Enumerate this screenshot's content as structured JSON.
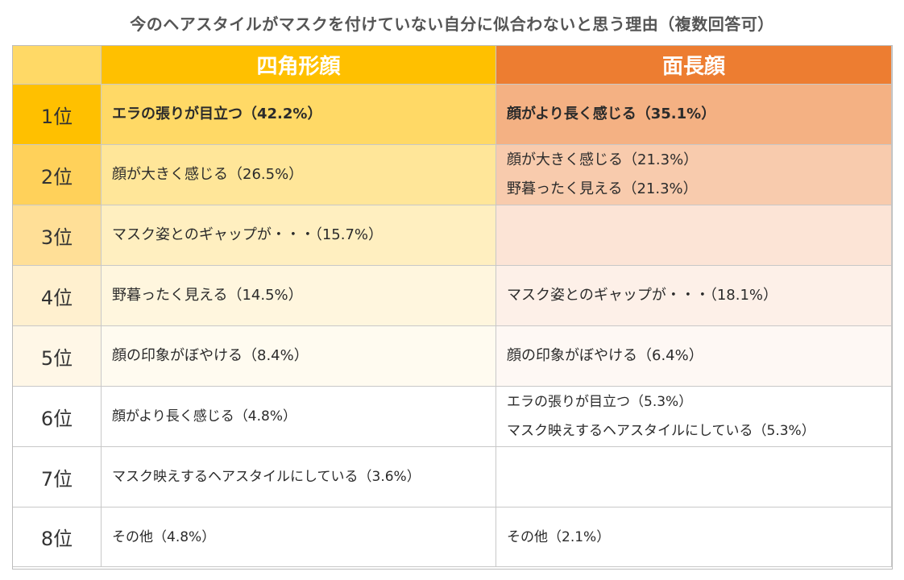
{
  "chart_data": {
    "type": "table",
    "title": "今のヘアスタイルがマスクを付けていない自分に似合わないと思う理由（複数回答可）",
    "columns": [
      "四角形顔",
      "面長顔"
    ],
    "colors": {
      "square_header": "#FFC000",
      "long_header": "#ED7D31"
    },
    "rows": [
      {
        "rank": "1位",
        "square": [
          {
            "text": "エラの張りが目立つ",
            "pct": "（42.2%）"
          }
        ],
        "long": [
          {
            "text": "顔がより長く感じる",
            "pct": "（35.1%）"
          }
        ]
      },
      {
        "rank": "2位",
        "square": [
          {
            "text": "顔が大きく感じる",
            "pct": "（26.5%）"
          }
        ],
        "long": [
          {
            "text": "顔が大きく感じる",
            "pct": "（21.3%）"
          },
          {
            "text": "野暮ったく見える",
            "pct": "（21.3%）"
          }
        ]
      },
      {
        "rank": "3位",
        "square": [
          {
            "text": "マスク姿とのギャップが・・・",
            "pct": "（15.7%）"
          }
        ],
        "long": []
      },
      {
        "rank": "4位",
        "square": [
          {
            "text": "野暮ったく見える",
            "pct": "（14.5%）"
          }
        ],
        "long": [
          {
            "text": "マスク姿とのギャップが・・・",
            "pct": "（18.1%）"
          }
        ]
      },
      {
        "rank": "5位",
        "square": [
          {
            "text": "顔の印象がぼやける",
            "pct": "（8.4%）"
          }
        ],
        "long": [
          {
            "text": "顔の印象がぼやける",
            "pct": "（6.4%）"
          }
        ]
      },
      {
        "rank": "6位",
        "square": [
          {
            "text": "顔がより長く感じる",
            "pct": "（4.8%）"
          }
        ],
        "long": [
          {
            "text": "エラの張りが目立つ",
            "pct": "（5.3%）"
          },
          {
            "text": "マスク映えするヘアスタイルにしている",
            "pct": "（5.3%）"
          }
        ]
      },
      {
        "rank": "7位",
        "square": [
          {
            "text": "マスク映えするヘアスタイルにしている",
            "pct": "（3.6%）"
          }
        ],
        "long": []
      },
      {
        "rank": "8位",
        "square": [
          {
            "text": "その他",
            "pct": "（4.8%）"
          }
        ],
        "long": [
          {
            "text": "その他",
            "pct": "（2.1%）"
          }
        ]
      }
    ]
  }
}
